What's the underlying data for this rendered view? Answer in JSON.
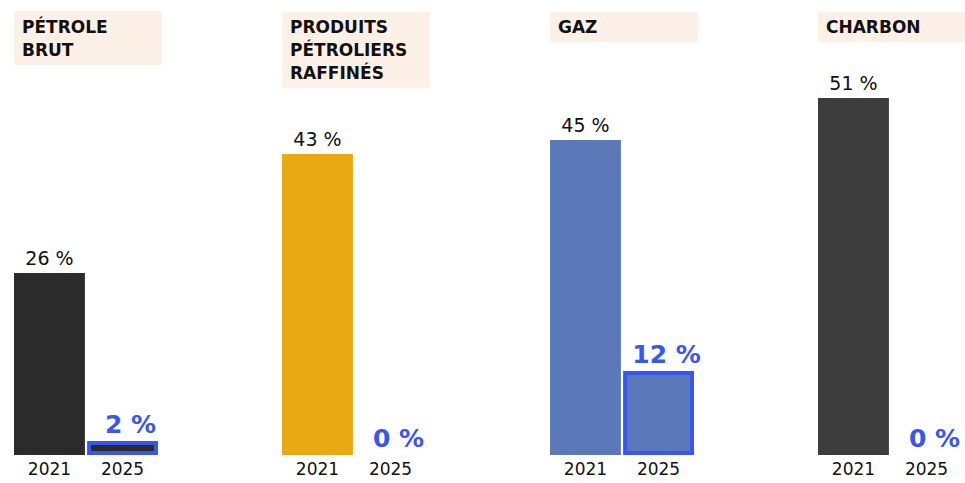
{
  "chart_data": [
    {
      "type": "bar",
      "title": "PÉTROLE BRUT",
      "categories": [
        "2021",
        "2025"
      ],
      "values": [
        26,
        2
      ],
      "value_labels": [
        "26 %",
        "2 %"
      ],
      "data_labels": true,
      "tick_labels": "x",
      "color": "#2b2b2b"
    },
    {
      "type": "bar",
      "title": "PRODUITS PÉTROLIERS RAFFINÉS",
      "categories": [
        "2021",
        "2025"
      ],
      "values": [
        43,
        0
      ],
      "value_labels": [
        "43 %",
        "0 %"
      ],
      "data_labels": true,
      "tick_labels": "x",
      "color": "#e9a912"
    },
    {
      "type": "bar",
      "title": "GAZ",
      "categories": [
        "2021",
        "2025"
      ],
      "values": [
        45,
        12
      ],
      "value_labels": [
        "45 %",
        "12 %"
      ],
      "data_labels": true,
      "tick_labels": "x",
      "color": "#5b79b8"
    },
    {
      "type": "bar",
      "title": "CHARBON",
      "categories": [
        "2021",
        "2025"
      ],
      "values": [
        51,
        0
      ],
      "value_labels": [
        "51 %",
        "0 %"
      ],
      "data_labels": true,
      "tick_labels": "x",
      "color": "#3c3c3c"
    }
  ]
}
